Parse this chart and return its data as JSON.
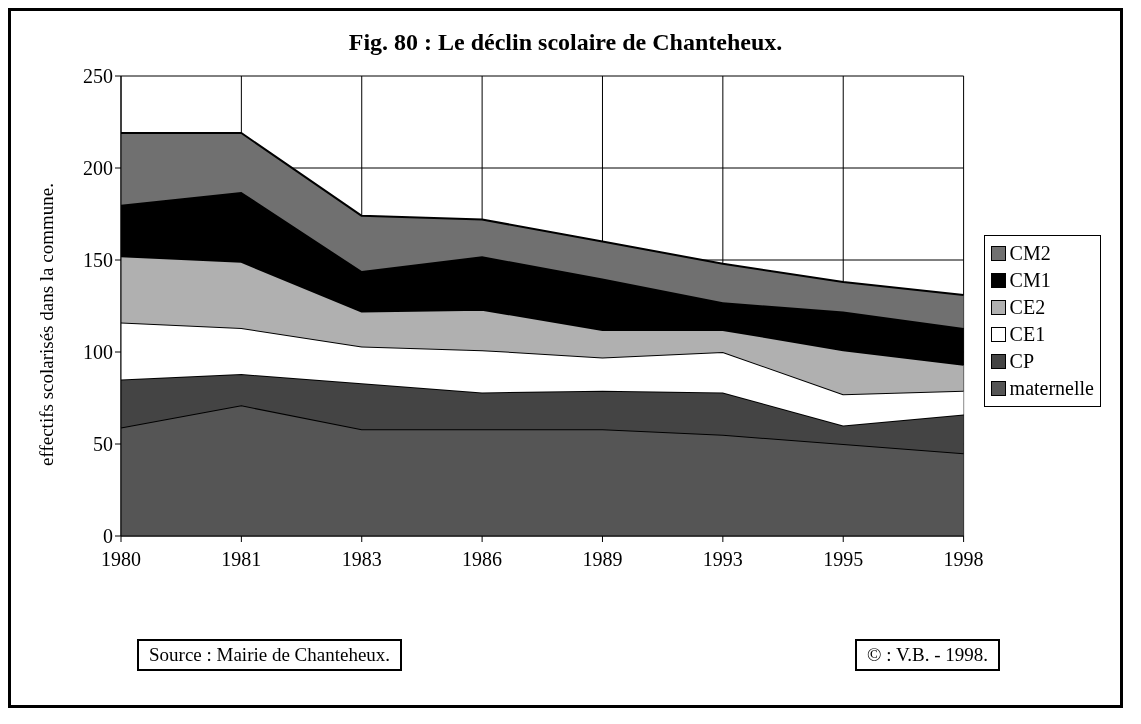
{
  "chart_data": {
    "type": "area",
    "stacked": true,
    "title": "Fig. 80 : Le déclin scolaire de Chanteheux.",
    "ylabel": "effectifs scolarisés dans la commune.",
    "categories": [
      "1980",
      "1981",
      "1983",
      "1986",
      "1989",
      "1993",
      "1995",
      "1998"
    ],
    "series": [
      {
        "name": "maternelle",
        "color": "#555555",
        "values": [
          59,
          71,
          58,
          58,
          58,
          55,
          50,
          45
        ]
      },
      {
        "name": "CP",
        "color": "#444444",
        "values": [
          26,
          17,
          25,
          20,
          21,
          23,
          10,
          21
        ]
      },
      {
        "name": "CE1",
        "color": "#ffffff",
        "values": [
          31,
          25,
          20,
          23,
          18,
          22,
          17,
          13
        ]
      },
      {
        "name": "CE2",
        "color": "#b0b0b0",
        "values": [
          36,
          36,
          19,
          22,
          15,
          12,
          24,
          14
        ]
      },
      {
        "name": "CM1",
        "color": "#000000",
        "values": [
          28,
          38,
          22,
          29,
          28,
          15,
          21,
          20
        ]
      },
      {
        "name": "CM2",
        "color": "#707070",
        "values": [
          39,
          32,
          30,
          20,
          20,
          21,
          16,
          18
        ]
      }
    ],
    "ylim": [
      0,
      250
    ],
    "yticks": [
      0,
      50,
      100,
      150,
      200,
      250
    ],
    "grid": true,
    "legend": "right",
    "annotations": [
      "Source : Mairie de Chanteheux.",
      "© : V.B. - 1998."
    ]
  }
}
